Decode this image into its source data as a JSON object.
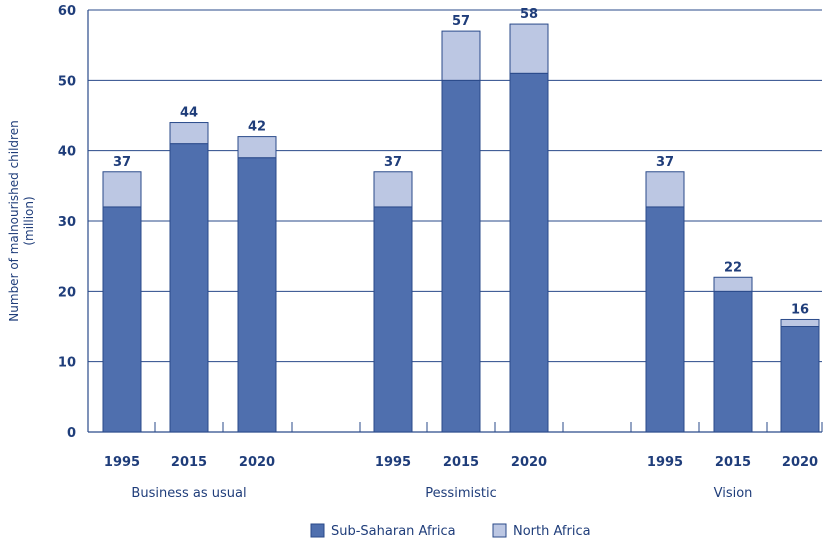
{
  "chart_data": {
    "type": "bar",
    "stacked": true,
    "ylabel_lines": [
      "Number of malnourished children",
      "(million)"
    ],
    "ylim": [
      0,
      60
    ],
    "yticks": [
      0,
      10,
      20,
      30,
      40,
      50,
      60
    ],
    "grid": true,
    "groups": [
      {
        "label": "Business as usual",
        "years": [
          "1995",
          "2015",
          "2020"
        ],
        "sub_saharan": [
          32,
          41,
          39
        ],
        "north_africa": [
          5,
          3,
          3
        ],
        "totals": [
          "37",
          "44",
          "42"
        ]
      },
      {
        "label": "Pessimistic",
        "years": [
          "1995",
          "2015",
          "2020"
        ],
        "sub_saharan": [
          32,
          50,
          51
        ],
        "north_africa": [
          5,
          7,
          7
        ],
        "totals": [
          "37",
          "57",
          "58"
        ]
      },
      {
        "label": "Vision",
        "years": [
          "1995",
          "2015",
          "2020"
        ],
        "sub_saharan": [
          32,
          20,
          15
        ],
        "north_africa": [
          5,
          2,
          1
        ],
        "totals": [
          "37",
          "22",
          "16"
        ]
      }
    ],
    "series": [
      {
        "name": "Sub-Saharan Africa",
        "color": "#4f6fae"
      },
      {
        "name": "North Africa",
        "color": "#bcc7e3"
      }
    ],
    "legend_position": "bottom-center"
  }
}
